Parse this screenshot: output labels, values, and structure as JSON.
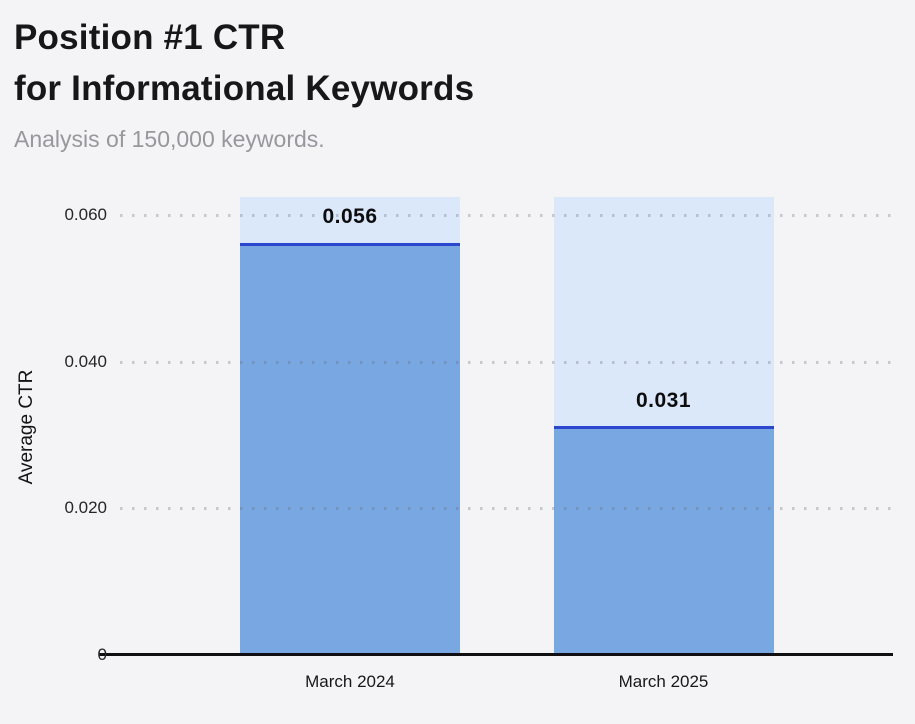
{
  "header": {
    "title_line1": "Position #1 CTR",
    "title_line2": "for Informational Keywords",
    "subtitle": "Analysis of 150,000 keywords."
  },
  "chart_data": {
    "type": "bar",
    "title": "Position #1 CTR for Informational Keywords",
    "subtitle": "Analysis of 150,000 keywords.",
    "categories": [
      "March 2024",
      "March 2025"
    ],
    "values": [
      0.056,
      0.031
    ],
    "value_labels": [
      "0.056",
      "0.031"
    ],
    "xlabel": "",
    "ylabel": "Average CTR",
    "ylim": [
      0,
      0.0625
    ],
    "yticks": [
      {
        "value": 0,
        "label": "0"
      },
      {
        "value": 0.02,
        "label": "0.020"
      },
      {
        "value": 0.04,
        "label": "0.040"
      },
      {
        "value": 0.06,
        "label": "0.060"
      }
    ],
    "grid": "dotted-horizontal-over-bars",
    "legend": "none",
    "colors": {
      "background": "#f4f4f6",
      "bar_background": "#dbe8fa",
      "bar_fill": "#79a7e2",
      "marker_line": "#2b46cf",
      "axis_line": "#101012",
      "title_text": "#17171a",
      "subtitle_text": "#97979d"
    }
  }
}
